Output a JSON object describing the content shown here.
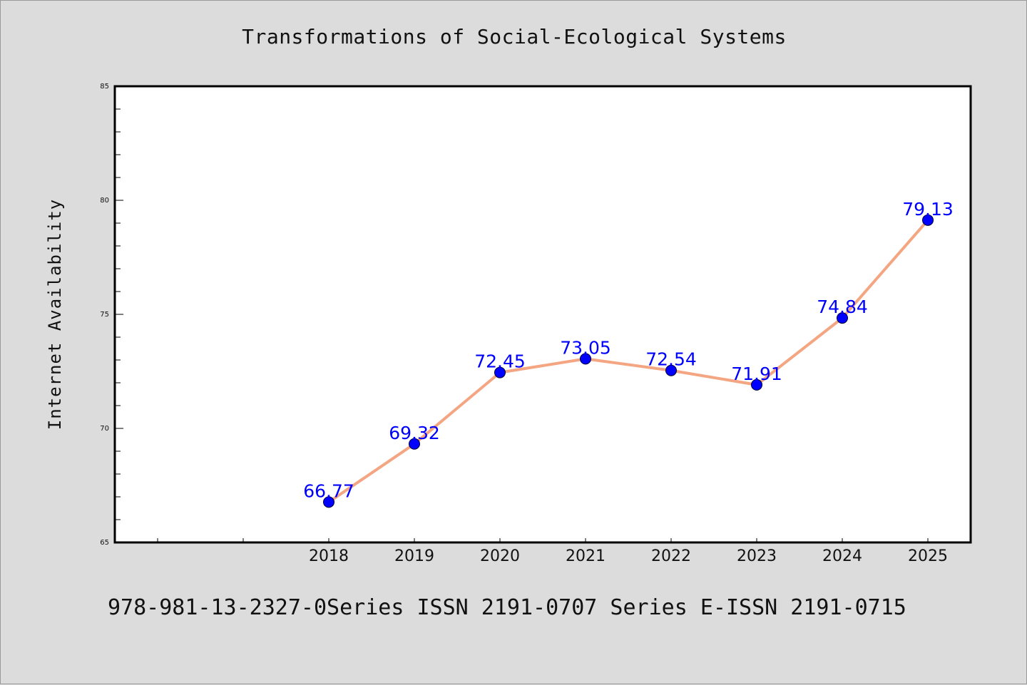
{
  "title": "Transformations of Social-Ecological Systems",
  "footer": "978-981-13-2327-0Series ISSN 2191-0707 Series E-ISSN 2191-0715",
  "colors": {
    "background": "#dcdcdc",
    "plot_background": "#ffffff",
    "line": "#f4a582",
    "marker": "#0000ff",
    "data_label": "#0000ff"
  },
  "chart_data": {
    "type": "line",
    "title": "Transformations of Social-Ecological Systems",
    "xlabel": "",
    "ylabel": "Internet Availability",
    "x": [
      "2018",
      "2019",
      "2020",
      "2021",
      "2022",
      "2023",
      "2024",
      "2025"
    ],
    "series": [
      {
        "values": [
          66.77,
          69.32,
          72.45,
          73.05,
          72.54,
          71.91,
          74.84,
          79.13
        ],
        "labels": [
          "66.77",
          "69.32",
          "72.45",
          "73.05",
          "72.54",
          "71.91",
          "74.84",
          "79.13"
        ]
      }
    ],
    "ylim": [
      65,
      85
    ],
    "y_ticks": [
      "65",
      "70",
      "75",
      "80",
      "85"
    ],
    "grid": false,
    "legend": "none"
  }
}
